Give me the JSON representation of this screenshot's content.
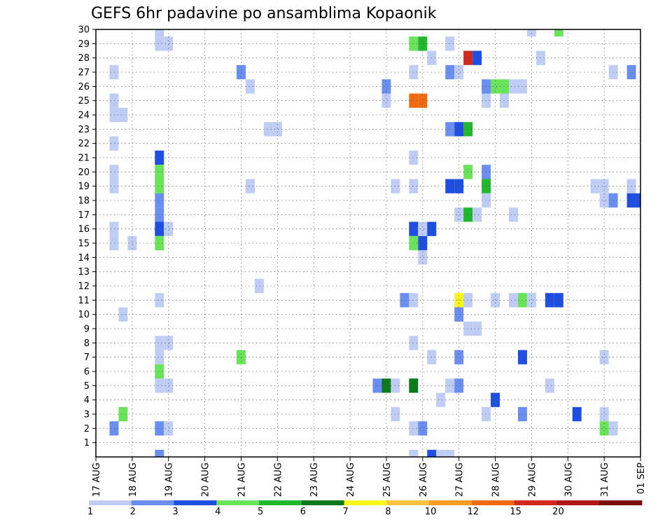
{
  "chart_data": {
    "type": "heatmap",
    "title": "GEFS 6hr padavine po ansamblima Kopaonik",
    "y_ticks": [
      1,
      2,
      3,
      4,
      5,
      6,
      7,
      8,
      9,
      10,
      11,
      12,
      13,
      14,
      15,
      16,
      17,
      18,
      19,
      20,
      21,
      22,
      23,
      24,
      25,
      26,
      27,
      28,
      29,
      30
    ],
    "ylim": [
      0,
      30
    ],
    "xlim": [
      0,
      60
    ],
    "x_ticks": [
      {
        "x": 0,
        "label": "17 AUG"
      },
      {
        "x": 4,
        "label": "18 AUG"
      },
      {
        "x": 8,
        "label": "19 AUG"
      },
      {
        "x": 12,
        "label": "20 AUG"
      },
      {
        "x": 16,
        "label": "21 AUG"
      },
      {
        "x": 20,
        "label": "22 AUG"
      },
      {
        "x": 24,
        "label": "23 AUG"
      },
      {
        "x": 28,
        "label": "24 AUG"
      },
      {
        "x": 32,
        "label": "25 AUG"
      },
      {
        "x": 36,
        "label": "26 AUG"
      },
      {
        "x": 40,
        "label": "27 AUG"
      },
      {
        "x": 44,
        "label": "28 AUG"
      },
      {
        "x": 48,
        "label": "29 AUG"
      },
      {
        "x": 52,
        "label": "30 AUG"
      },
      {
        "x": 56,
        "label": "31 AUG"
      },
      {
        "x": 60,
        "label": "01 SEP"
      }
    ],
    "grid": true,
    "colorbar": {
      "labels": [
        "1",
        "2",
        "3",
        "4",
        "5",
        "6",
        "7",
        "8",
        "10",
        "12",
        "15",
        "20"
      ],
      "colors": [
        "#bfcdf5",
        "#6a8ff0",
        "#1f4fe0",
        "#6ae35a",
        "#22b82e",
        "#0a7a1a",
        "#f7f71c",
        "#fbc342",
        "#fa9e23",
        "#f06a12",
        "#d02a1e",
        "#b01818",
        "#780c0c"
      ]
    },
    "cells": [
      [
        7,
        30,
        1
      ],
      [
        48,
        30,
        1
      ],
      [
        51,
        30,
        4
      ],
      [
        7,
        29,
        1
      ],
      [
        8,
        29,
        1
      ],
      [
        35,
        29,
        4
      ],
      [
        36,
        29,
        5
      ],
      [
        39,
        29,
        1
      ],
      [
        37,
        28,
        1
      ],
      [
        41,
        28,
        11
      ],
      [
        42,
        28,
        3
      ],
      [
        49,
        28,
        1
      ],
      [
        2,
        27,
        1
      ],
      [
        16,
        27,
        2
      ],
      [
        35,
        27,
        1
      ],
      [
        39,
        27,
        2
      ],
      [
        40,
        27,
        1
      ],
      [
        57,
        27,
        1
      ],
      [
        59,
        27,
        2
      ],
      [
        17,
        26,
        1
      ],
      [
        32,
        26,
        2
      ],
      [
        43,
        26,
        2
      ],
      [
        44,
        26,
        4
      ],
      [
        45,
        26,
        4
      ],
      [
        46,
        26,
        1
      ],
      [
        47,
        26,
        1
      ],
      [
        2,
        25,
        1
      ],
      [
        32,
        25,
        1
      ],
      [
        35,
        25,
        10
      ],
      [
        36,
        25,
        10
      ],
      [
        43,
        25,
        1
      ],
      [
        45,
        25,
        1
      ],
      [
        2,
        24,
        1
      ],
      [
        3,
        24,
        1
      ],
      [
        19,
        23,
        1
      ],
      [
        20,
        23,
        1
      ],
      [
        39,
        23,
        2
      ],
      [
        40,
        23,
        3
      ],
      [
        41,
        23,
        5
      ],
      [
        2,
        22,
        1
      ],
      [
        7,
        21,
        3
      ],
      [
        35,
        21,
        1
      ],
      [
        2,
        20,
        1
      ],
      [
        7,
        20,
        4
      ],
      [
        41,
        20,
        4
      ],
      [
        43,
        20,
        2
      ],
      [
        2,
        19,
        1
      ],
      [
        7,
        19,
        4
      ],
      [
        17,
        19,
        1
      ],
      [
        33,
        19,
        1
      ],
      [
        35,
        19,
        1
      ],
      [
        39,
        19,
        3
      ],
      [
        40,
        19,
        3
      ],
      [
        43,
        19,
        5
      ],
      [
        55,
        19,
        1
      ],
      [
        56,
        19,
        1
      ],
      [
        59,
        19,
        1
      ],
      [
        7,
        18,
        2
      ],
      [
        43,
        18,
        1
      ],
      [
        56,
        18,
        1
      ],
      [
        57,
        18,
        2
      ],
      [
        59,
        18,
        3
      ],
      [
        60,
        18,
        3
      ],
      [
        7,
        17,
        2
      ],
      [
        40,
        17,
        1
      ],
      [
        41,
        17,
        5
      ],
      [
        42,
        17,
        1
      ],
      [
        46,
        17,
        1
      ],
      [
        2,
        16,
        1
      ],
      [
        7,
        16,
        3
      ],
      [
        8,
        16,
        1
      ],
      [
        35,
        16,
        3
      ],
      [
        36,
        16,
        1
      ],
      [
        37,
        16,
        3
      ],
      [
        2,
        15,
        1
      ],
      [
        4,
        15,
        1
      ],
      [
        7,
        15,
        4
      ],
      [
        35,
        15,
        4
      ],
      [
        36,
        15,
        3
      ],
      [
        36,
        14,
        1
      ],
      [
        18,
        12,
        1
      ],
      [
        7,
        11,
        1
      ],
      [
        34,
        11,
        2
      ],
      [
        35,
        11,
        1
      ],
      [
        40,
        11,
        7
      ],
      [
        41,
        11,
        1
      ],
      [
        44,
        11,
        1
      ],
      [
        46,
        11,
        1
      ],
      [
        47,
        11,
        4
      ],
      [
        48,
        11,
        1
      ],
      [
        50,
        11,
        3
      ],
      [
        51,
        11,
        3
      ],
      [
        3,
        10,
        1
      ],
      [
        40,
        10,
        2
      ],
      [
        41,
        9,
        1
      ],
      [
        42,
        9,
        1
      ],
      [
        7,
        8,
        1
      ],
      [
        8,
        8,
        1
      ],
      [
        35,
        8,
        1
      ],
      [
        7,
        7,
        1
      ],
      [
        16,
        7,
        4
      ],
      [
        37,
        7,
        1
      ],
      [
        40,
        7,
        2
      ],
      [
        47,
        7,
        3
      ],
      [
        56,
        7,
        1
      ],
      [
        7,
        6,
        4
      ],
      [
        7,
        5,
        1
      ],
      [
        8,
        5,
        1
      ],
      [
        31,
        5,
        2
      ],
      [
        32,
        5,
        6
      ],
      [
        33,
        5,
        1
      ],
      [
        35,
        5,
        6
      ],
      [
        39,
        5,
        1
      ],
      [
        40,
        5,
        2
      ],
      [
        50,
        5,
        1
      ],
      [
        38,
        4,
        1
      ],
      [
        44,
        4,
        3
      ],
      [
        3,
        3,
        4
      ],
      [
        33,
        3,
        1
      ],
      [
        43,
        3,
        1
      ],
      [
        47,
        3,
        2
      ],
      [
        53,
        3,
        3
      ],
      [
        56,
        3,
        1
      ],
      [
        2,
        2,
        2
      ],
      [
        7,
        2,
        2
      ],
      [
        8,
        2,
        1
      ],
      [
        35,
        2,
        1
      ],
      [
        36,
        2,
        2
      ],
      [
        56,
        2,
        4
      ],
      [
        57,
        2,
        1
      ],
      [
        7,
        0,
        2
      ],
      [
        35,
        0,
        1
      ],
      [
        37,
        0,
        3
      ],
      [
        38,
        0,
        1
      ],
      [
        39,
        0,
        1
      ]
    ]
  }
}
